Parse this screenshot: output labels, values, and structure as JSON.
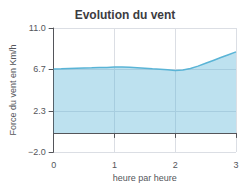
{
  "chart_data": {
    "type": "area",
    "title": "Evolution du vent",
    "xlabel": "heure par heure",
    "ylabel": "Force du vent en Km/h",
    "x": [
      0,
      0.125,
      0.25,
      0.375,
      0.5,
      0.625,
      0.75,
      0.875,
      1.0,
      1.125,
      1.25,
      1.375,
      1.5,
      1.625,
      1.75,
      1.875,
      2.0,
      2.125,
      2.25,
      2.375,
      2.5,
      2.625,
      2.75,
      2.875,
      3.0
    ],
    "values": [
      6.7,
      6.72,
      6.75,
      6.78,
      6.8,
      6.82,
      6.85,
      6.87,
      6.9,
      6.92,
      6.88,
      6.84,
      6.78,
      6.72,
      6.68,
      6.62,
      6.55,
      6.6,
      6.75,
      7.0,
      7.3,
      7.6,
      7.9,
      8.2,
      8.5
    ],
    "color": "#5ab4d6",
    "xlim": [
      0,
      3
    ],
    "ylim": [
      -2.0,
      11.0
    ],
    "xticks": [
      0,
      1,
      2,
      3
    ],
    "yticks": [
      {
        "value": -2.0,
        "label": "−2.0"
      },
      2.3,
      6.7,
      {
        "value": 11.0,
        "label": "11.0"
      }
    ],
    "grid": true
  }
}
